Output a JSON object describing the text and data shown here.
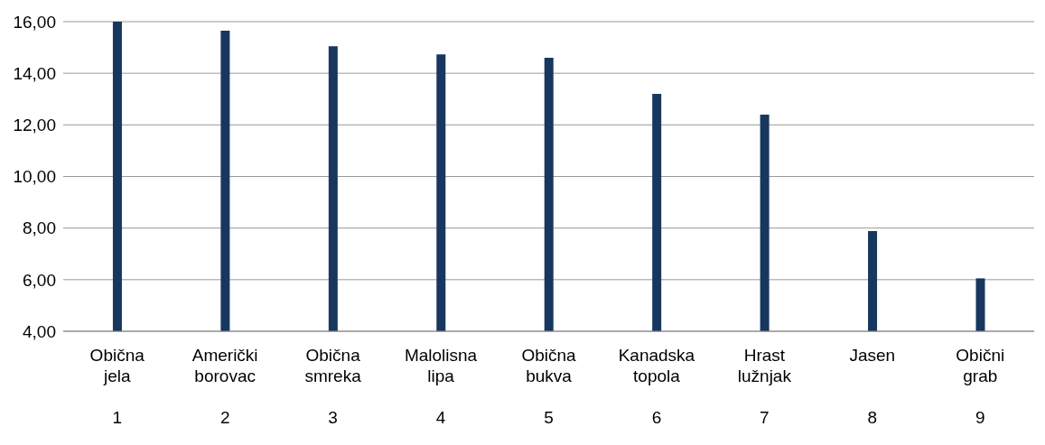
{
  "chart_data": {
    "type": "bar",
    "categories": [
      "Obična\njela\n\n1",
      "Američki\nborovac\n\n2",
      "Obična\nsmreka\n\n3",
      "Malolisna\nlipa\n\n4",
      "Obična\nbukva\n\n5",
      "Kanadska\ntopola\n\n6",
      "Hrast\nlužnjak\n\n7",
      "Jasen\n\n\n8",
      "Obični\ngrab\n\n9"
    ],
    "values": [
      16.0,
      15.65,
      15.05,
      14.73,
      14.6,
      13.2,
      12.4,
      7.88,
      6.05
    ],
    "color": "#17375e",
    "ylim": [
      4,
      16
    ],
    "yticks": [
      {
        "value": 4,
        "label": "4,00"
      },
      {
        "value": 6,
        "label": "6,00"
      },
      {
        "value": 8,
        "label": "8,00"
      },
      {
        "value": 10,
        "label": "10,00"
      },
      {
        "value": 12,
        "label": "12,00"
      },
      {
        "value": 14,
        "label": "14,00"
      },
      {
        "value": 16,
        "label": "16,00"
      }
    ],
    "grid": "y"
  }
}
